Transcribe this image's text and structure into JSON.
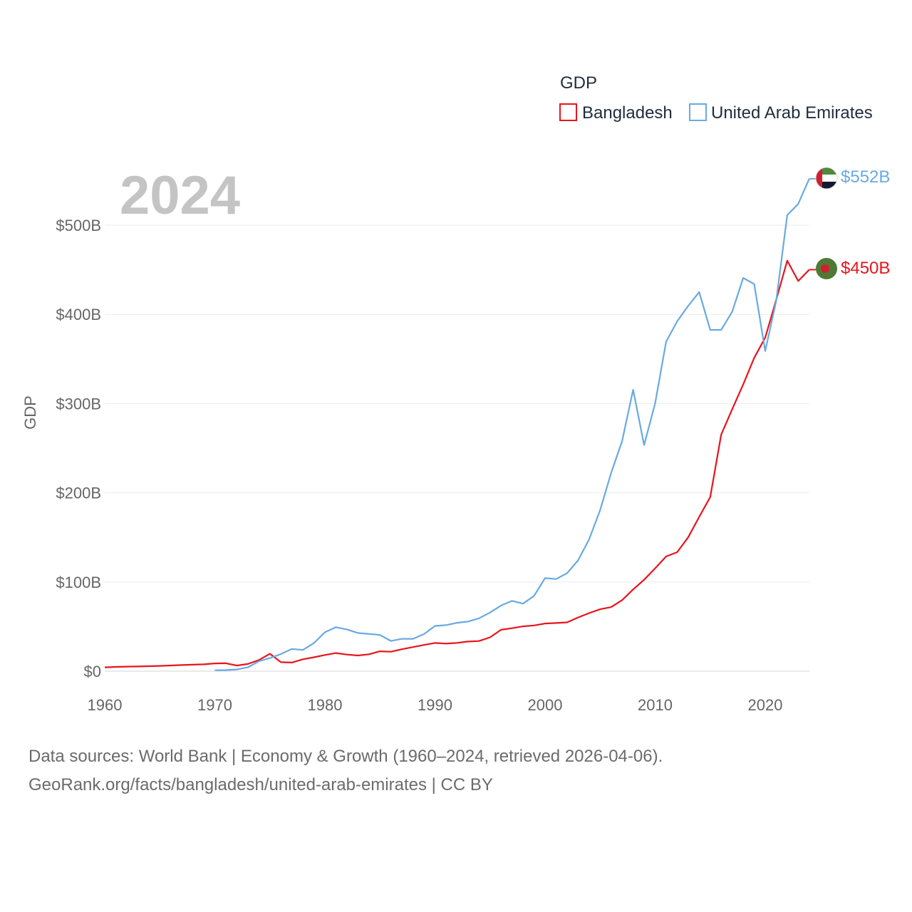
{
  "chart_data": {
    "type": "line",
    "title": "GDP",
    "year_label": "2024",
    "ylabel": "GDP",
    "xlabel": "",
    "xlim": [
      1960,
      2024
    ],
    "ylim": [
      0,
      560
    ],
    "x_ticks": [
      1960,
      1970,
      1980,
      1990,
      2000,
      2010,
      2020
    ],
    "x_tick_labels": [
      "1960",
      "1970",
      "1980",
      "1990",
      "2000",
      "2010",
      "2020"
    ],
    "y_ticks": [
      0,
      100,
      200,
      300,
      400,
      500
    ],
    "y_tick_labels": [
      "$0",
      "$100B",
      "$200B",
      "$300B",
      "$400B",
      "$500B"
    ],
    "grid": true,
    "legend_position": "top-right",
    "units": "billions USD",
    "series": [
      {
        "name": "Bangladesh",
        "color": "#e8141b",
        "end_label": "$450B",
        "end_marker": "flag-bangladesh",
        "x": [
          1960,
          1961,
          1962,
          1963,
          1964,
          1965,
          1966,
          1967,
          1968,
          1969,
          1970,
          1971,
          1972,
          1973,
          1974,
          1975,
          1976,
          1977,
          1978,
          1979,
          1980,
          1981,
          1982,
          1983,
          1984,
          1985,
          1986,
          1987,
          1988,
          1989,
          1990,
          1991,
          1992,
          1993,
          1994,
          1995,
          1996,
          1997,
          1998,
          1999,
          2000,
          2001,
          2002,
          2003,
          2004,
          2005,
          2006,
          2007,
          2008,
          2009,
          2010,
          2011,
          2012,
          2013,
          2014,
          2015,
          2016,
          2017,
          2018,
          2019,
          2020,
          2021,
          2022,
          2023,
          2024
        ],
        "values": [
          4.3,
          4.8,
          5.1,
          5.3,
          5.6,
          5.9,
          6.4,
          6.9,
          7.3,
          7.7,
          8.7,
          8.9,
          6.3,
          8.1,
          12.5,
          19.5,
          10.1,
          9.7,
          13.3,
          15.6,
          18.1,
          20.3,
          18.6,
          17.6,
          18.9,
          22.3,
          21.8,
          24.6,
          27.0,
          29.4,
          31.6,
          30.9,
          31.7,
          33.2,
          33.8,
          37.9,
          46.4,
          48.2,
          50.2,
          51.3,
          53.4,
          53.99,
          54.7,
          60.2,
          65.1,
          69.4,
          71.8,
          79.6,
          91.6,
          102.5,
          115.3,
          128.6,
          133.4,
          150.0,
          172.9,
          195.1,
          265.2,
          293.8,
          321.4,
          351.2,
          374.0,
          416.3,
          460.2,
          437.4,
          450.1
        ]
      },
      {
        "name": "United Arab Emirates",
        "color": "#69a9e4",
        "end_label": "$552B",
        "end_marker": "flag-united-arab-emirates",
        "x": [
          1970,
          1971,
          1972,
          1973,
          1974,
          1975,
          1976,
          1977,
          1978,
          1979,
          1980,
          1981,
          1982,
          1983,
          1984,
          1985,
          1986,
          1987,
          1988,
          1989,
          1990,
          1991,
          1992,
          1993,
          1994,
          1995,
          1996,
          1997,
          1998,
          1999,
          2000,
          2001,
          2002,
          2003,
          2004,
          2005,
          2006,
          2007,
          2008,
          2009,
          2010,
          2011,
          2012,
          2013,
          2014,
          2015,
          2016,
          2017,
          2018,
          2019,
          2020,
          2021,
          2022,
          2023,
          2024
        ],
        "values": [
          1.0,
          1.2,
          1.9,
          4.3,
          11.1,
          14.7,
          19.2,
          24.9,
          23.8,
          31.5,
          43.6,
          49.3,
          46.8,
          42.8,
          41.8,
          40.6,
          33.9,
          36.3,
          36.3,
          41.5,
          50.7,
          51.6,
          54.2,
          55.6,
          59.3,
          65.7,
          73.6,
          78.8,
          75.7,
          84.4,
          104.3,
          103.3,
          109.8,
          124.3,
          147.8,
          180.6,
          222.1,
          257.9,
          315.5,
          253.5,
          300.2,
          369.3,
          392.2,
          409.4,
          425.0,
          382.6,
          382.6,
          403.1,
          440.8,
          434.0,
          358.9,
          415.0,
          511.2,
          523.8,
          552.0
        ]
      }
    ]
  },
  "footer": {
    "line1": "Data sources: World Bank | Economy & Growth (1960–2024, retrieved 2026-04-06).",
    "line2": "GeoRank.org/facts/bangladesh/united-arab-emirates | CC BY"
  }
}
